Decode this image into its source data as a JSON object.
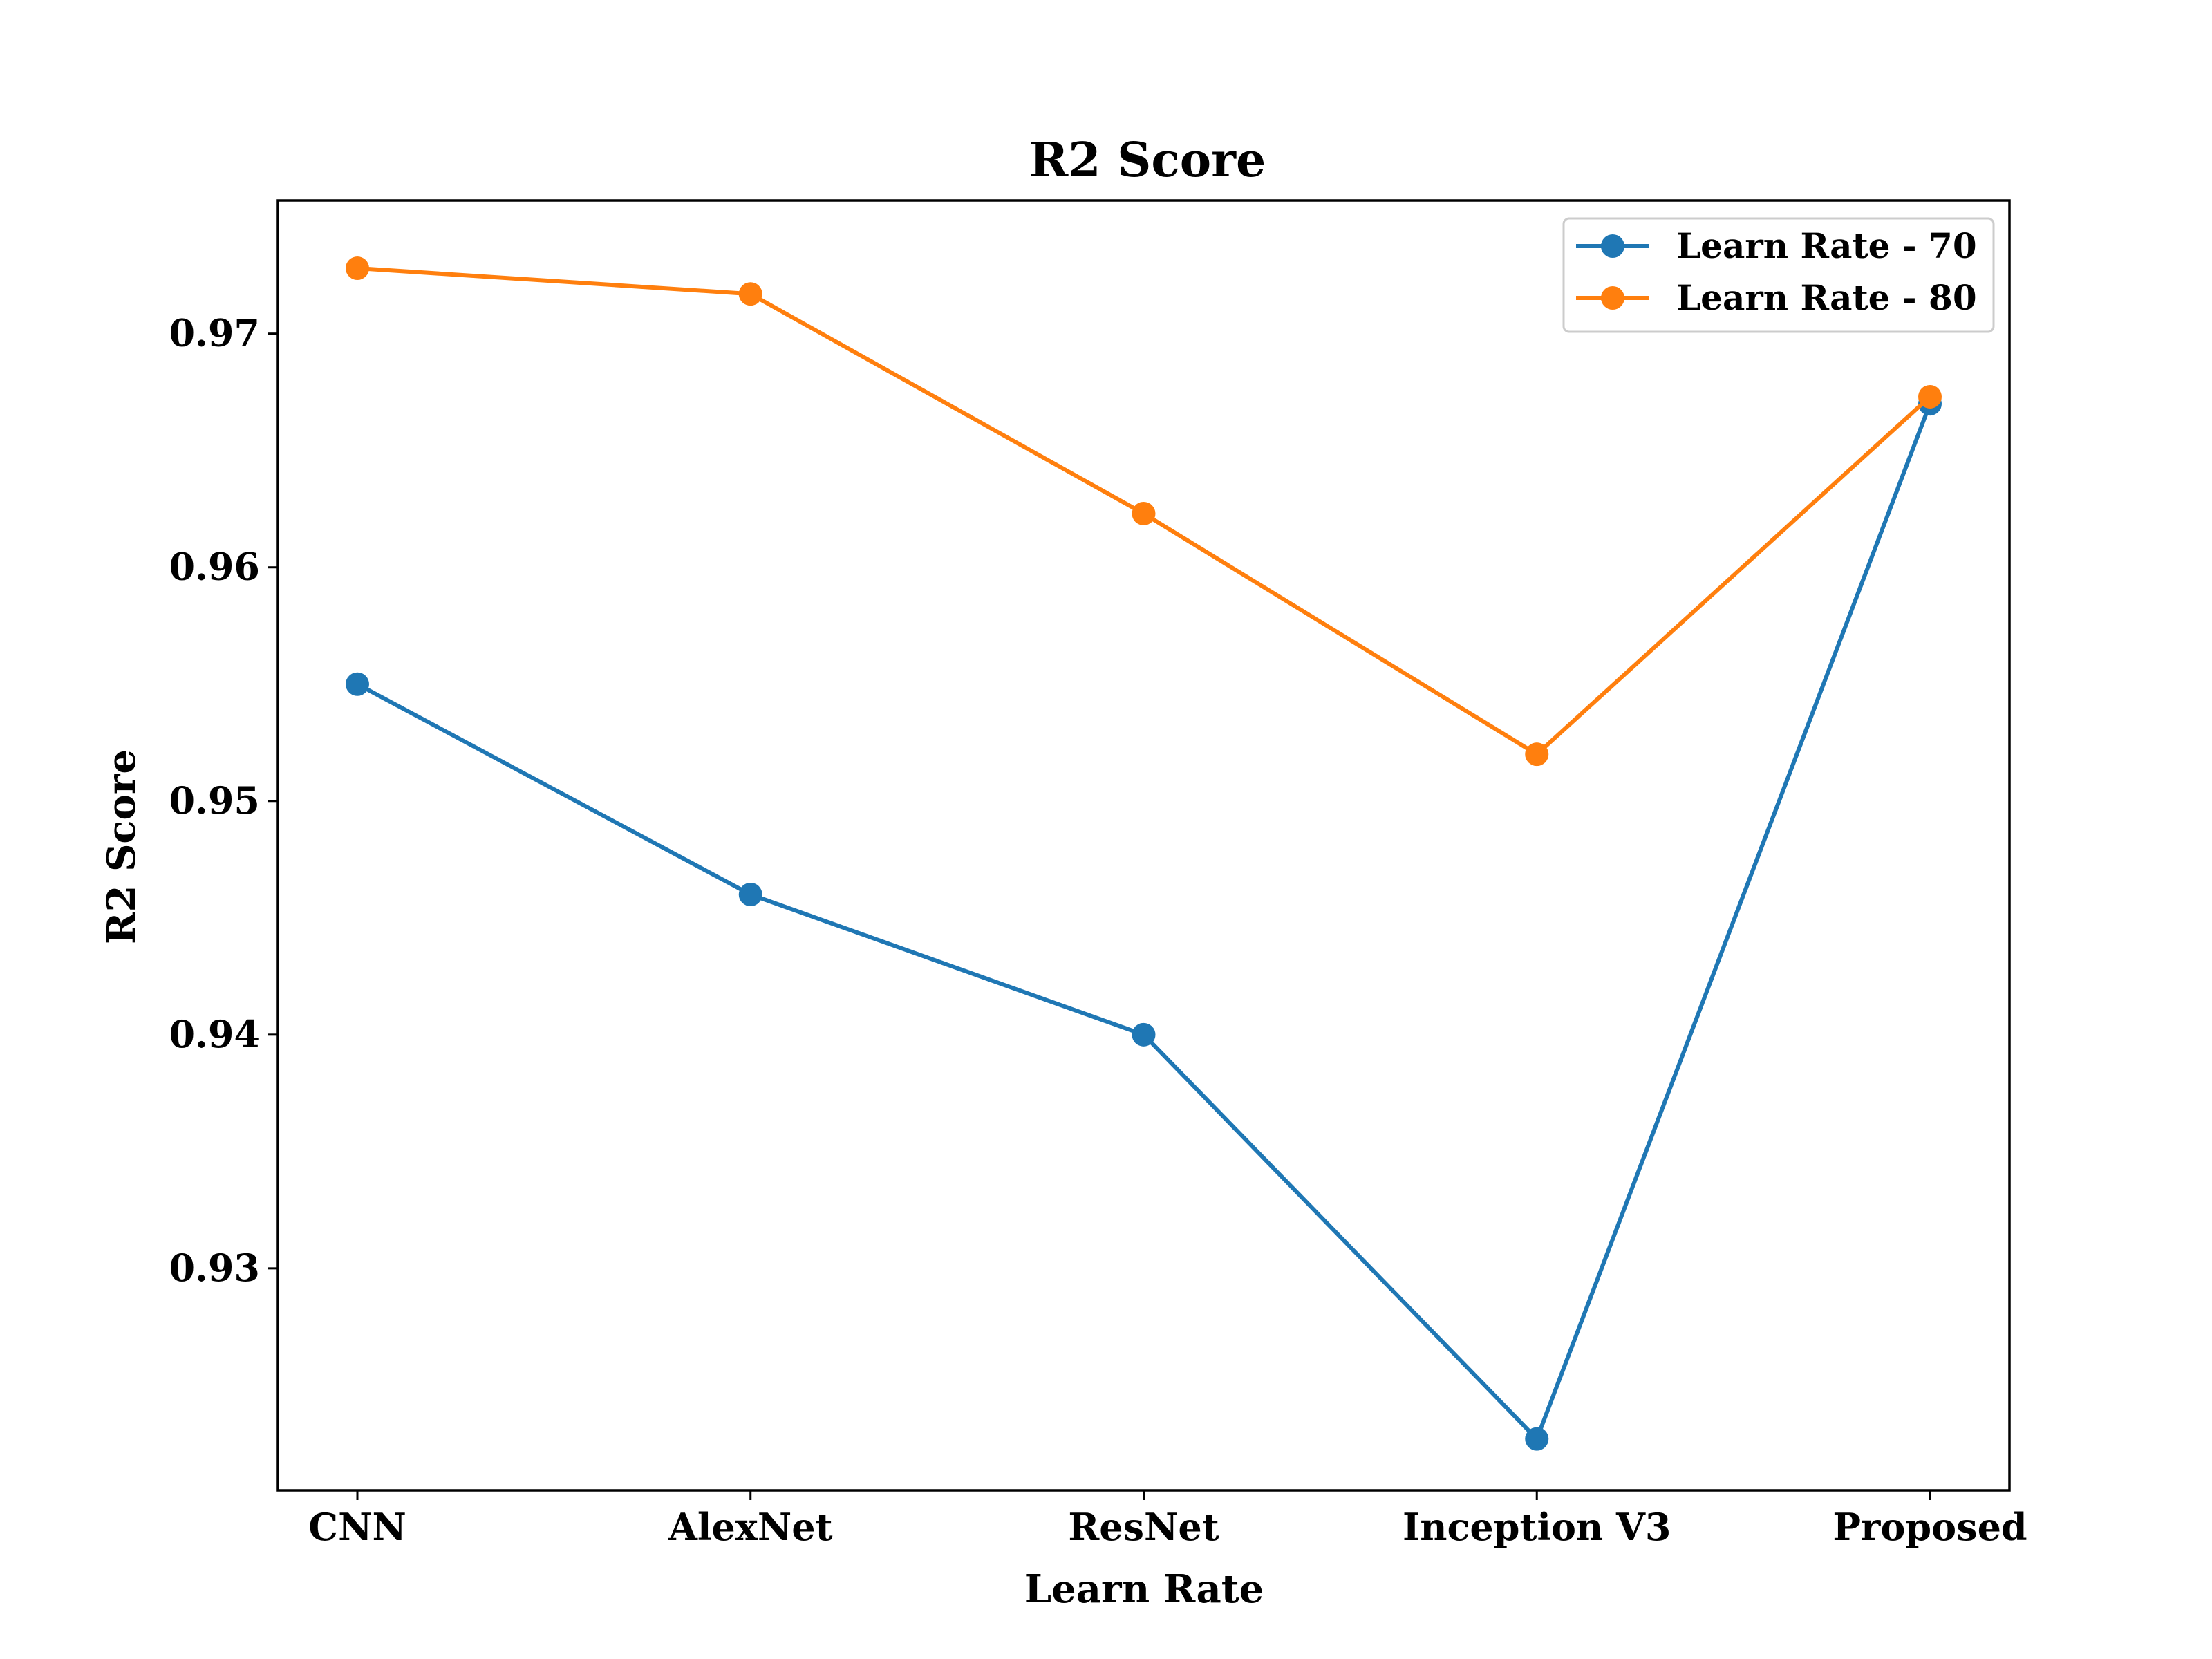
{
  "chart_data": {
    "type": "line",
    "title": "R2 Score",
    "xlabel": "Learn Rate",
    "ylabel": "R2 Score",
    "categories": [
      "CNN",
      "AlexNet",
      "ResNet",
      "Inception V3",
      "Proposed"
    ],
    "ylim": [
      0.9205,
      0.9757
    ],
    "yticks": [
      0.93,
      0.94,
      0.95,
      0.96,
      0.97
    ],
    "ytick_labels": [
      "0.93",
      "0.94",
      "0.95",
      "0.96",
      "0.97"
    ],
    "grid": false,
    "legend_position": "top-right",
    "series": [
      {
        "name": "Learn Rate - 70",
        "color": "#1f77b4",
        "values": [
          0.955,
          0.946,
          0.94,
          0.9227,
          0.967
        ]
      },
      {
        "name": "Learn Rate - 80",
        "color": "#ff7f0e",
        "values": [
          0.9728,
          0.9717,
          0.9623,
          0.952,
          0.9673
        ]
      }
    ]
  }
}
